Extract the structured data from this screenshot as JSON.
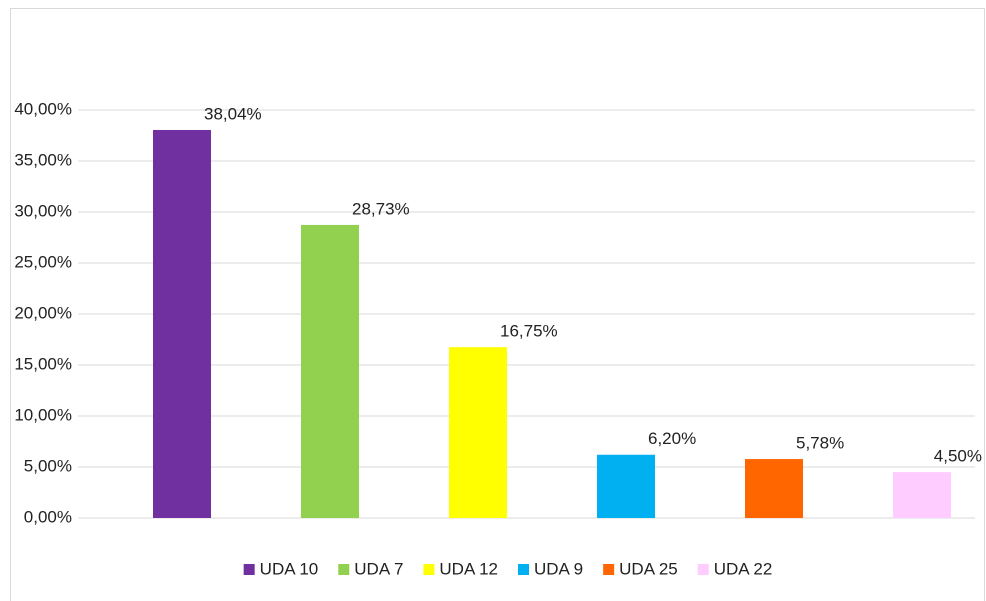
{
  "chart_data": {
    "type": "bar",
    "categories": [
      "UDA 10",
      "UDA 7",
      "UDA 12",
      "UDA 9",
      "UDA 25",
      "UDA 22"
    ],
    "values": [
      38.04,
      28.73,
      16.75,
      6.2,
      5.78,
      4.5
    ],
    "value_labels": [
      "38,04%",
      "28,73%",
      "16,75%",
      "6,20%",
      "5,78%",
      "4,50%"
    ],
    "colors": [
      "#7030a0",
      "#92d050",
      "#ffff00",
      "#00b0f0",
      "#ff6600",
      "#ffccff"
    ],
    "ylim": [
      0,
      40
    ],
    "yticks": [
      {
        "value": 0,
        "label": "0,00%"
      },
      {
        "value": 5,
        "label": "5,00%"
      },
      {
        "value": 10,
        "label": "10,00%"
      },
      {
        "value": 15,
        "label": "15,00%"
      },
      {
        "value": 20,
        "label": "20,00%"
      },
      {
        "value": 25,
        "label": "25,00%"
      },
      {
        "value": 30,
        "label": "30,00%"
      },
      {
        "value": 35,
        "label": "35,00%"
      },
      {
        "value": 40,
        "label": "40,00%"
      }
    ],
    "grid": true,
    "legend": "bottom"
  }
}
